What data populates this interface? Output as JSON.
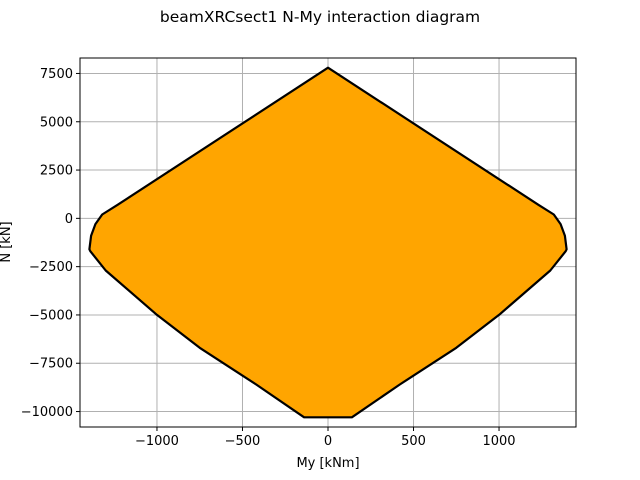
{
  "chart_data": {
    "type": "area",
    "title": "beamXRCsect1 N-My interaction diagram",
    "xlabel": "My [kNm]",
    "ylabel": "N [kN]",
    "xlim": [
      -1450,
      1450
    ],
    "ylim": [
      -10800,
      8300
    ],
    "xticks": [
      -1000,
      -500,
      0,
      500,
      1000
    ],
    "xtick_labels": [
      "−1000",
      "−500",
      "0",
      "500",
      "1000"
    ],
    "yticks": [
      7500,
      5000,
      2500,
      0,
      -2500,
      -5000,
      -7500,
      -10000
    ],
    "ytick_labels": [
      "7500",
      "5000",
      "2500",
      "0",
      "−2500",
      "−5000",
      "−7500",
      "−10000"
    ],
    "grid": true,
    "fill_color": "#ffa500",
    "edge_color": "#000000",
    "series": [
      {
        "x": [
          0,
          1230,
          1320,
          1360,
          1385,
          1395,
          1390,
          1300,
          1000,
          750,
          420,
          140,
          -140,
          -420,
          -750,
          -1000,
          -1300,
          -1390,
          -1395,
          -1385,
          -1360,
          -1320,
          -1230,
          0
        ],
        "y": [
          7800,
          700,
          200,
          -300,
          -900,
          -1600,
          -1700,
          -2700,
          -5000,
          -6700,
          -8600,
          -10300,
          -10300,
          -8600,
          -6700,
          -5000,
          -2700,
          -1700,
          -1600,
          -900,
          -300,
          200,
          700,
          7800
        ]
      }
    ]
  }
}
